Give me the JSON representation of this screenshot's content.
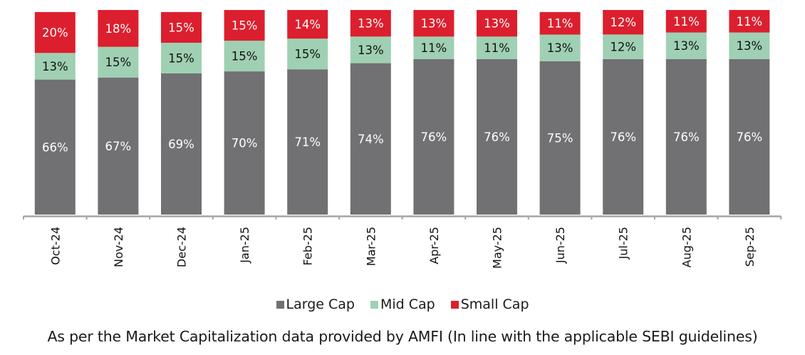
{
  "chart_data": {
    "type": "bar",
    "stacked": true,
    "title": "",
    "xlabel": "",
    "ylabel": "",
    "ylim": [
      0,
      100
    ],
    "grid": false,
    "legend_position": "bottom",
    "categories": [
      "Oct-24",
      "Nov-24",
      "Dec-24",
      "Jan-25",
      "Feb-25",
      "Mar-25",
      "Apr-25",
      "May-25",
      "Jun-25",
      "Jul-25",
      "Aug-25",
      "Sep-25"
    ],
    "series": [
      {
        "name": "Large Cap",
        "color": "#717073",
        "label_color": "#ffffff",
        "values": [
          66,
          67,
          69,
          70,
          71,
          74,
          76,
          76,
          75,
          76,
          76,
          76
        ]
      },
      {
        "name": "Mid Cap",
        "color": "#9fd0b3",
        "label_color": "#111111",
        "values": [
          13,
          15,
          15,
          15,
          15,
          13,
          11,
          11,
          13,
          12,
          13,
          13
        ]
      },
      {
        "name": "Small Cap",
        "color": "#dc1f2e",
        "label_color": "#ffffff",
        "values": [
          20,
          18,
          15,
          15,
          14,
          13,
          13,
          13,
          11,
          12,
          11,
          11
        ]
      }
    ],
    "data_label_suffix": "%"
  },
  "footnote": "As per the Market Capitalization data provided by AMFI (In line with the applicable SEBI guidelines)"
}
